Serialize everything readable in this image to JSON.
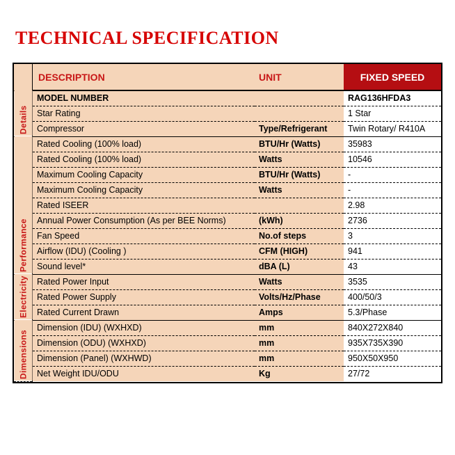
{
  "title": "TECHNICAL SPECIFICATION",
  "headers": {
    "description": "DESCRIPTION",
    "unit": "UNIT",
    "fixed_speed": "FIXED SPEED"
  },
  "groups": [
    {
      "name": "Details",
      "rows": [
        {
          "desc": "MODEL NUMBER",
          "unit": "",
          "val": "RAG136HFDA3",
          "bold": true
        },
        {
          "desc": "Star Rating",
          "unit": "",
          "val": "1 Star"
        },
        {
          "desc": "Compressor",
          "unit": "Type/Refrigerant",
          "val": "Twin Rotary/ R410A"
        }
      ]
    },
    {
      "name": "Performance",
      "rows": [
        {
          "desc": "Rated Cooling (100% load)",
          "unit": "BTU/Hr (Watts)",
          "val": "35983"
        },
        {
          "desc": "Rated Cooling (100% load)",
          "unit": "Watts",
          "val": "10546"
        },
        {
          "desc": "Maximum Cooling Capacity",
          "unit": "BTU/Hr (Watts)",
          "val": "-"
        },
        {
          "desc": "Maximum Cooling Capacity",
          "unit": "Watts",
          "val": "-"
        },
        {
          "desc": "Rated ISEER",
          "unit": "",
          "val": "2.98"
        },
        {
          "desc": "Annual Power Consumption (As per BEE Norms)",
          "unit": "(kWh)",
          "val": "2736"
        },
        {
          "desc": "Fan Speed",
          "unit": "No.of steps",
          "val": "3"
        },
        {
          "desc": "Airflow (IDU) (Cooling )",
          "unit": "CFM (HIGH)",
          "val": "941"
        },
        {
          "desc": "Sound level*",
          "unit": "dBA (L)",
          "val": "43"
        }
      ]
    },
    {
      "name": "Electricity",
      "rows": [
        {
          "desc": "Rated Power Input",
          "unit": "Watts",
          "val": "3535"
        },
        {
          "desc": "Rated Power Supply",
          "unit": "Volts/Hz/Phase",
          "val": "400/50/3"
        },
        {
          "desc": "Rated Current Drawn",
          "unit": "Amps",
          "val": "5.3/Phase"
        }
      ]
    },
    {
      "name": "Dimensions",
      "rows": [
        {
          "desc": "Dimension (IDU) (WXHXD)",
          "unit": "mm",
          "val": "840X272X840"
        },
        {
          "desc": "Dimension (ODU) (WXHXD)",
          "unit": "mm",
          "val": "935X735X390"
        },
        {
          "desc": "Dimension (Panel) (WXHWD)",
          "unit": "mm",
          "val": "950X50X950"
        },
        {
          "desc": "Net Weight IDU/ODU",
          "unit": "Kg",
          "val": "27/72"
        }
      ]
    }
  ],
  "colors": {
    "title": "#d60000",
    "header_text": "#c81717",
    "header_bg": "#f5d5b9",
    "fixed_header_bg": "#b50e12",
    "fixed_header_text": "#ffffff",
    "row_peach_bg": "#f5d5b9",
    "value_bg": "#ffffff",
    "border": "#000000"
  },
  "font_sizes": {
    "title": 26,
    "header": 14,
    "body": 12.5,
    "group": 12
  }
}
